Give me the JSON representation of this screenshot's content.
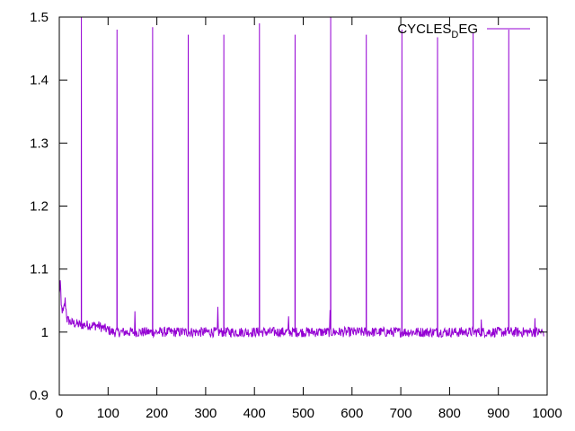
{
  "chart_data": {
    "type": "line",
    "title": "",
    "xlabel": "",
    "ylabel": "",
    "xlim": [
      0,
      1000
    ],
    "ylim": [
      0.9,
      1.5
    ],
    "xticks": [
      "0",
      "100",
      "200",
      "300",
      "400",
      "500",
      "600",
      "700",
      "800",
      "900",
      "1000"
    ],
    "yticks": [
      "0.9",
      "1",
      "1.1",
      "1.2",
      "1.3",
      "1.4",
      "1.5"
    ],
    "grid": false,
    "legend_position": "top-right",
    "legend": {
      "main": "CYCLES",
      "sub": "D",
      "rest": "EG"
    },
    "series": [
      {
        "name": "CYCLES_DEG",
        "color": "#9400d3",
        "noise_baseline": 1.0,
        "noise_amplitude": 0.008,
        "start_transient": [
          [
            0,
            1.06
          ],
          [
            2,
            1.08
          ],
          [
            4,
            1.04
          ],
          [
            8,
            1.03
          ],
          [
            12,
            1.05
          ],
          [
            16,
            1.02
          ],
          [
            25,
            1.015
          ],
          [
            40,
            1.012
          ],
          [
            80,
            1.01
          ],
          [
            110,
            1.0
          ]
        ],
        "spikes": [
          {
            "x": 45,
            "y": 1.5,
            "shoulder": 1.255
          },
          {
            "x": 118,
            "y": 1.48,
            "shoulder": 1.237
          },
          {
            "x": 191,
            "y": 1.484,
            "shoulder": 1.238
          },
          {
            "x": 264,
            "y": 1.472,
            "shoulder": 1.237
          },
          {
            "x": 337,
            "y": 1.472,
            "shoulder": 1.235
          },
          {
            "x": 410,
            "y": 1.49,
            "shoulder": 1.243
          },
          {
            "x": 483,
            "y": 1.472,
            "shoulder": 1.235
          },
          {
            "x": 556,
            "y": 1.5,
            "shoulder": 1.247
          },
          {
            "x": 629,
            "y": 1.472,
            "shoulder": 1.234
          },
          {
            "x": 702,
            "y": 1.48,
            "shoulder": 1.236
          },
          {
            "x": 775,
            "y": 1.468,
            "shoulder": 1.234
          },
          {
            "x": 848,
            "y": 1.475,
            "shoulder": 1.234
          },
          {
            "x": 921,
            "y": 1.48,
            "shoulder": 1.243
          }
        ],
        "bumps": [
          [
            155,
            1.033
          ],
          [
            325,
            1.04
          ],
          [
            470,
            1.025
          ],
          [
            555,
            1.035
          ],
          [
            865,
            1.02
          ],
          [
            975,
            1.022
          ]
        ],
        "x_end": 993
      }
    ]
  }
}
